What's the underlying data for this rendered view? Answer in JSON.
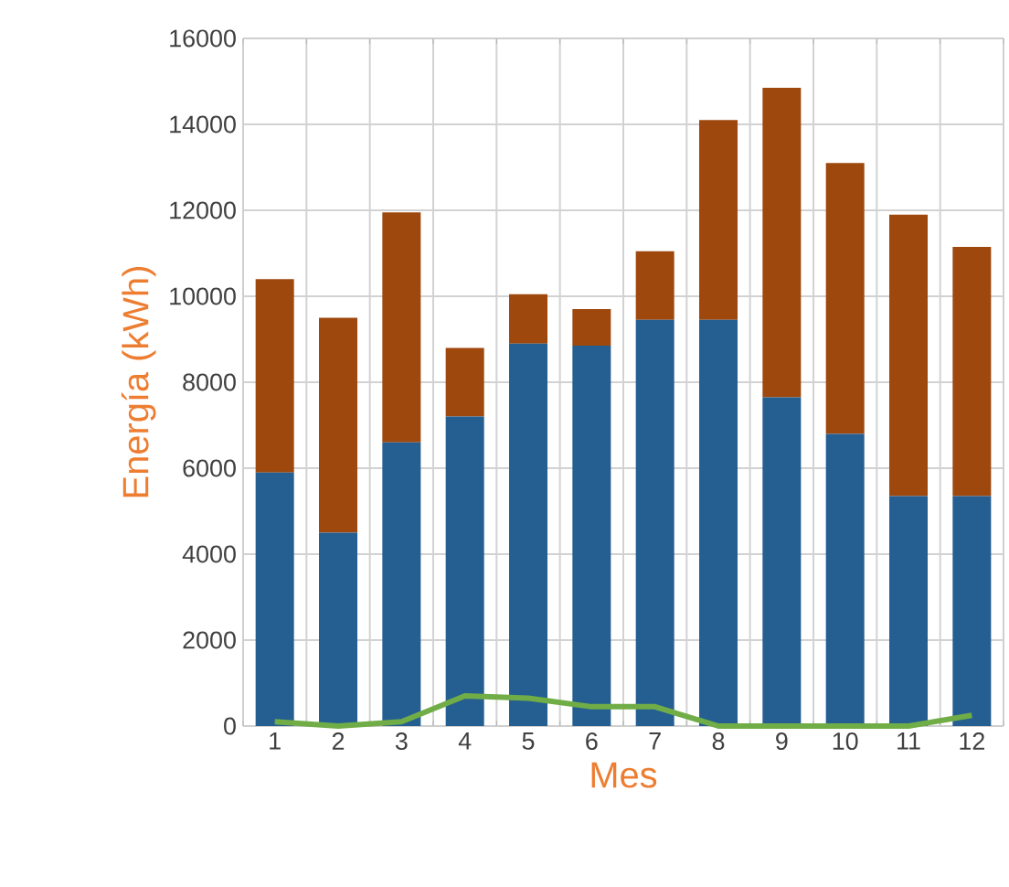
{
  "chart_data": {
    "type": "bar",
    "stacked": true,
    "xlabel": "Mes",
    "ylabel": "Energía (kWh)",
    "categories": [
      "1",
      "2",
      "3",
      "4",
      "5",
      "6",
      "7",
      "8",
      "9",
      "10",
      "11",
      "12"
    ],
    "series": [
      {
        "color": "#255e91",
        "values": [
          5900,
          4500,
          6600,
          7200,
          8900,
          8850,
          9450,
          9450,
          7650,
          6800,
          5350,
          5350
        ]
      },
      {
        "color": "#9e480e",
        "values": [
          4500,
          5000,
          5350,
          1600,
          1150,
          850,
          1600,
          4650,
          7200,
          6300,
          6550,
          5800
        ]
      },
      {
        "type": "line",
        "color": "#70ad47",
        "values": [
          100,
          0,
          100,
          700,
          650,
          450,
          450,
          0,
          0,
          0,
          0,
          250
        ]
      }
    ],
    "ylim": [
      0,
      16000
    ],
    "yticks": [
      0,
      2000,
      4000,
      6000,
      8000,
      10000,
      12000,
      14000,
      16000
    ],
    "grid": true
  }
}
